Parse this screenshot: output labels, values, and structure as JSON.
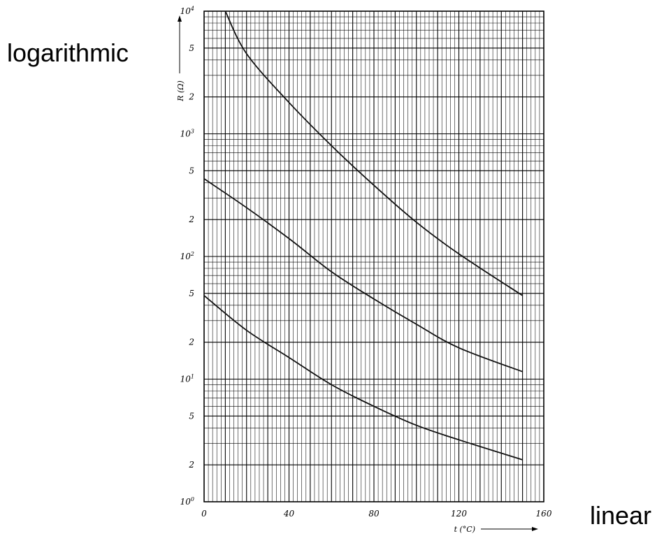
{
  "annotations": {
    "left": "logarithmic",
    "right": "linear"
  },
  "chart_data": {
    "type": "line",
    "title": "",
    "xlabel": "t (°C)",
    "ylabel": "R (Ω)",
    "xlim": [
      0,
      160
    ],
    "ylim": [
      1,
      10000
    ],
    "yscale": "log",
    "grid": true,
    "legend": "none",
    "x_ticks": [
      "0",
      "40",
      "80",
      "120",
      "160"
    ],
    "y_ticks": [
      {
        "base": "10",
        "exp": "0"
      },
      {
        "base": "2",
        "exp": ""
      },
      {
        "base": "5",
        "exp": ""
      },
      {
        "base": "10",
        "exp": "1"
      },
      {
        "base": "2",
        "exp": ""
      },
      {
        "base": "5",
        "exp": ""
      },
      {
        "base": "10",
        "exp": "2"
      },
      {
        "base": "2",
        "exp": ""
      },
      {
        "base": "5",
        "exp": ""
      },
      {
        "base": "10",
        "exp": "3"
      },
      {
        "base": "2",
        "exp": ""
      },
      {
        "base": "5",
        "exp": ""
      },
      {
        "base": "10",
        "exp": "4"
      }
    ],
    "series": [
      {
        "x": [
          10,
          20,
          40,
          60,
          80,
          100,
          120,
          150
        ],
        "y": [
          10000,
          4500,
          1800,
          800,
          380,
          190,
          105,
          48
        ]
      },
      {
        "x": [
          0,
          20,
          40,
          60,
          80,
          100,
          120,
          150
        ],
        "y": [
          430,
          250,
          140,
          75,
          45,
          28,
          18,
          11.5
        ]
      },
      {
        "x": [
          0,
          20,
          40,
          60,
          80,
          100,
          120,
          150
        ],
        "y": [
          48,
          25,
          15,
          9,
          6,
          4.2,
          3.2,
          2.2
        ]
      }
    ]
  }
}
